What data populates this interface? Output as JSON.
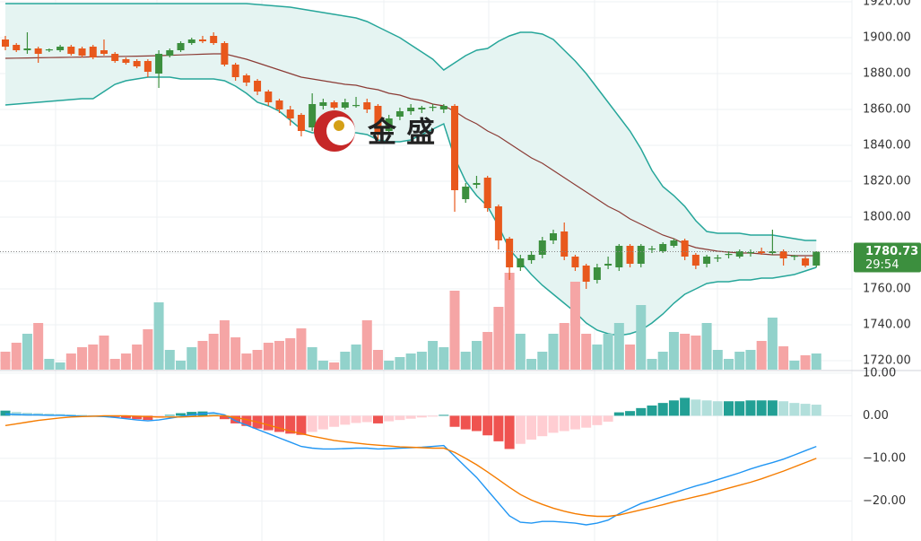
{
  "chart_data": [
    {
      "type": "candlestick",
      "watermark": "金 盛",
      "up_color": "#3c8f3e",
      "down_color": "#e8581c",
      "ylim": [
        1715,
        1921
      ],
      "yticks": [
        {
          "value": 1920,
          "label": "1920.00"
        },
        {
          "value": 1900,
          "label": "1900.00"
        },
        {
          "value": 1880,
          "label": "1880.00"
        },
        {
          "value": 1860,
          "label": "1860.00"
        },
        {
          "value": 1840,
          "label": "1840.00"
        },
        {
          "value": 1820,
          "label": "1820.00"
        },
        {
          "value": 1800,
          "label": "1800.00"
        },
        {
          "value": 1780,
          "label": "1780.00"
        },
        {
          "value": 1760,
          "label": "1760.00"
        },
        {
          "value": 1740,
          "label": "1740.00"
        },
        {
          "value": 1720,
          "label": "1720.00"
        }
      ],
      "grid": true,
      "last_price": 1780.73,
      "countdown": "29:54",
      "last_price_color": "#3c8f3e",
      "open": [
        1899,
        1896,
        1893,
        1894,
        1893,
        1893,
        1895,
        1894,
        1895,
        1893,
        1891,
        1888,
        1887,
        1887,
        1880,
        1890,
        1893,
        1897,
        1899,
        1901,
        1897,
        1885,
        1879,
        1876,
        1870,
        1865,
        1860,
        1857,
        1850,
        1862,
        1864,
        1861,
        1862,
        1864,
        1862,
        1848,
        1856,
        1859,
        1860,
        1861,
        1860,
        1862,
        1810,
        1818,
        1822,
        1806,
        1788,
        1772,
        1776,
        1779,
        1787,
        1792,
        1778,
        1773,
        1765,
        1773,
        1772,
        1784,
        1774,
        1782,
        1781,
        1784,
        1787,
        1779,
        1774,
        1777,
        1779,
        1778,
        1780,
        1781,
        1780,
        1781,
        1778,
        1777,
        1773
      ],
      "high": [
        1901,
        1897,
        1903,
        1895,
        1894,
        1896,
        1896,
        1895,
        1896,
        1899,
        1892,
        1889,
        1888,
        1888,
        1893,
        1894,
        1898,
        1900,
        1901,
        1903,
        1898,
        1886,
        1880,
        1877,
        1871,
        1866,
        1862,
        1858,
        1869,
        1866,
        1865,
        1866,
        1867,
        1866,
        1863,
        1857,
        1861,
        1863,
        1862,
        1863,
        1863,
        1863,
        1819,
        1823,
        1823,
        1807,
        1789,
        1779,
        1781,
        1789,
        1793,
        1797,
        1779,
        1774,
        1774,
        1778,
        1785,
        1785,
        1785,
        1784,
        1786,
        1788,
        1788,
        1780,
        1779,
        1779,
        1781,
        1782,
        1782,
        1783,
        1793,
        1782,
        1779,
        1778,
        1781
      ],
      "low": [
        1893,
        1892,
        1891,
        1886,
        1892,
        1892,
        1890,
        1889,
        1888,
        1890,
        1886,
        1885,
        1883,
        1878,
        1872,
        1889,
        1892,
        1896,
        1897,
        1896,
        1884,
        1876,
        1873,
        1868,
        1862,
        1858,
        1851,
        1845,
        1848,
        1860,
        1860,
        1860,
        1861,
        1858,
        1843,
        1846,
        1854,
        1857,
        1858,
        1859,
        1858,
        1803,
        1808,
        1816,
        1803,
        1782,
        1765,
        1770,
        1774,
        1777,
        1785,
        1776,
        1770,
        1760,
        1763,
        1771,
        1770,
        1772,
        1772,
        1780,
        1780,
        1783,
        1776,
        1771,
        1772,
        1775,
        1777,
        1777,
        1778,
        1779,
        1779,
        1773,
        1776,
        1772,
        1772
      ],
      "close": [
        1895,
        1893,
        1894,
        1891,
        1893.5,
        1895,
        1891,
        1890,
        1889,
        1891,
        1887,
        1886,
        1884,
        1881,
        1891,
        1893,
        1897,
        1899,
        1898,
        1897,
        1885,
        1878,
        1875,
        1870,
        1864,
        1860,
        1855,
        1848,
        1863,
        1864,
        1861,
        1864,
        1862.5,
        1860,
        1846,
        1855,
        1859,
        1861,
        1861,
        1861.5,
        1862,
        1815,
        1817,
        1819,
        1805,
        1787,
        1772,
        1777,
        1779,
        1787,
        1791,
        1778,
        1772,
        1764,
        1772,
        1774,
        1784,
        1774,
        1784,
        1782.5,
        1785,
        1787,
        1778,
        1773,
        1778,
        1777.5,
        1779.5,
        1781,
        1780.5,
        1780,
        1781,
        1777,
        1778.5,
        1773,
        1780.73
      ],
      "bollinger": {
        "color": "#26a69a",
        "fill": "#e5f4f2",
        "middle_color": "#8b3b35",
        "upper": [
          1919,
          1919,
          1919,
          1919,
          1919,
          1919,
          1919,
          1919,
          1919,
          1919,
          1919,
          1919,
          1919,
          1919,
          1919,
          1919,
          1919,
          1919,
          1919,
          1919,
          1919,
          1919,
          1919,
          1918.5,
          1918,
          1917.5,
          1917,
          1916,
          1915,
          1914,
          1913,
          1912,
          1911,
          1909,
          1906,
          1903,
          1900,
          1896,
          1892,
          1888,
          1882,
          1886,
          1890,
          1893,
          1894,
          1898,
          1901,
          1903,
          1903,
          1902,
          1899,
          1893,
          1887,
          1880,
          1872,
          1864,
          1856,
          1848,
          1838,
          1826,
          1817,
          1812,
          1806,
          1798,
          1792,
          1791,
          1791,
          1791,
          1790,
          1790,
          1790,
          1789,
          1788,
          1787,
          1787
        ],
        "middle": [
          1888.5,
          1888.6,
          1888.7,
          1888.8,
          1888.9,
          1889,
          1889.1,
          1889.2,
          1889.3,
          1889.4,
          1889.5,
          1889.6,
          1889.7,
          1889.8,
          1890,
          1890.2,
          1890.4,
          1890.6,
          1890.8,
          1891,
          1891,
          1889.5,
          1888,
          1886,
          1884,
          1882,
          1880,
          1878,
          1877,
          1876,
          1875,
          1874,
          1873.5,
          1872,
          1871,
          1869,
          1868,
          1866,
          1865,
          1863,
          1862,
          1859,
          1855,
          1852,
          1848,
          1845,
          1841,
          1837,
          1833,
          1830,
          1826,
          1822,
          1818,
          1814,
          1810,
          1806,
          1803,
          1799,
          1796,
          1793,
          1790,
          1788,
          1785,
          1783,
          1782,
          1781,
          1780.5,
          1780,
          1780,
          1779.5,
          1779,
          1779,
          1778.5,
          1778.5,
          1778.5
        ],
        "lower": [
          1862.5,
          1863,
          1863.5,
          1864,
          1864.5,
          1865,
          1865.5,
          1866,
          1866,
          1870,
          1874,
          1876,
          1877,
          1878,
          1878,
          1878,
          1877,
          1877,
          1877,
          1877,
          1876,
          1873,
          1869,
          1864,
          1862,
          1859,
          1854,
          1849,
          1847,
          1847,
          1847,
          1847,
          1847,
          1846,
          1843,
          1842,
          1842,
          1843,
          1846,
          1849,
          1852,
          1833,
          1820,
          1812,
          1806,
          1795,
          1782,
          1775,
          1768,
          1762,
          1757,
          1752,
          1747,
          1741,
          1737,
          1735,
          1734,
          1735,
          1737,
          1741,
          1746,
          1752,
          1757,
          1760,
          1763,
          1764,
          1764,
          1765,
          1765,
          1766,
          1766,
          1767,
          1768,
          1770,
          1772
        ]
      },
      "volume": {
        "up_color": "#92d2cb",
        "down_color": "#f5a5a5",
        "values": [
          20,
          30,
          40,
          52,
          12,
          8,
          18,
          25,
          28,
          38,
          12,
          18,
          28,
          45,
          75,
          22,
          10,
          25,
          32,
          40,
          55,
          36,
          18,
          22,
          30,
          32,
          35,
          46,
          25,
          10,
          8,
          20,
          28,
          55,
          22,
          10,
          14,
          18,
          20,
          32,
          25,
          88,
          20,
          32,
          42,
          70,
          108,
          40,
          12,
          20,
          40,
          52,
          98,
          40,
          28,
          40,
          52,
          28,
          72,
          12,
          20,
          42,
          40,
          38,
          52,
          22,
          12,
          20,
          22,
          32,
          58,
          26,
          10,
          16,
          18
        ]
      }
    },
    {
      "type": "macd",
      "ylim": [
        -29.4,
        10.4
      ],
      "yticks": [
        {
          "value": 10,
          "label": "10.00"
        },
        {
          "value": 0,
          "label": "0.00"
        },
        {
          "value": -10,
          "label": "−10.00"
        },
        {
          "value": -20,
          "label": "−20.00"
        }
      ],
      "grid": true,
      "histogram_colors": {
        "up_rising": "#22a095",
        "up_falling": "#b2dfdb",
        "down_falling": "#ef5350",
        "down_rising": "#ffcdd2"
      },
      "histogram": [
        1.2,
        0.9,
        0.7,
        0.6,
        0.5,
        0.4,
        0.3,
        0.2,
        0.1,
        0,
        -0.3,
        -0.6,
        -0.8,
        -1.0,
        -0.5,
        0.2,
        0.6,
        0.9,
        1.0,
        0.6,
        -0.8,
        -1.8,
        -2.4,
        -3.0,
        -3.4,
        -3.8,
        -4.2,
        -4.5,
        -3.8,
        -3.2,
        -2.6,
        -2.1,
        -1.7,
        -1.5,
        -1.8,
        -1.3,
        -1.0,
        -0.7,
        -0.4,
        -0.2,
        0.2,
        -2.6,
        -3.2,
        -3.6,
        -4.6,
        -6.0,
        -7.8,
        -6.6,
        -5.6,
        -4.8,
        -4.0,
        -3.6,
        -3.2,
        -2.8,
        -2.2,
        -1.4,
        0.8,
        1.1,
        1.8,
        2.4,
        3.0,
        3.6,
        4.2,
        3.8,
        3.6,
        3.4,
        3.4,
        3.4,
        3.6,
        3.6,
        3.6,
        3.4,
        3.0,
        2.8,
        2.6
      ],
      "macd": {
        "color": "#2196f3",
        "values": [
          0.4,
          0.3,
          0.2,
          0.2,
          0.1,
          0.1,
          0.0,
          -0.1,
          -0.1,
          -0.2,
          -0.4,
          -0.7,
          -1.0,
          -1.2,
          -1.0,
          -0.6,
          -0.2,
          0.2,
          0.5,
          0.7,
          0.2,
          -1.2,
          -2.2,
          -3.2,
          -4.2,
          -5.2,
          -6.2,
          -7.2,
          -7.6,
          -7.8,
          -7.8,
          -7.7,
          -7.6,
          -7.6,
          -7.8,
          -7.7,
          -7.6,
          -7.5,
          -7.4,
          -7.2,
          -7.0,
          -9.5,
          -12.0,
          -14.5,
          -17.5,
          -20.5,
          -23.5,
          -25.0,
          -25.2,
          -24.8,
          -24.8,
          -25.0,
          -25.2,
          -25.6,
          -25.2,
          -24.5,
          -23.0,
          -21.8,
          -20.6,
          -19.8,
          -19.0,
          -18.2,
          -17.3,
          -16.5,
          -15.8,
          -15.0,
          -14.2,
          -13.4,
          -12.5,
          -11.7,
          -11.0,
          -10.2,
          -9.2,
          -8.2,
          -7.2
        ]
      },
      "signal": {
        "color": "#f57c00",
        "values": [
          -2.3,
          -1.9,
          -1.5,
          -1.1,
          -0.8,
          -0.5,
          -0.3,
          -0.2,
          -0.1,
          0,
          0,
          0,
          -0.1,
          -0.2,
          -0.3,
          -0.3,
          -0.3,
          -0.2,
          -0.1,
          0,
          0,
          -0.4,
          -0.9,
          -1.5,
          -2.2,
          -2.9,
          -3.6,
          -4.2,
          -4.8,
          -5.3,
          -5.8,
          -6.1,
          -6.4,
          -6.7,
          -6.9,
          -7.1,
          -7.3,
          -7.4,
          -7.5,
          -7.6,
          -7.6,
          -8.6,
          -10.0,
          -11.5,
          -13.2,
          -15.0,
          -16.8,
          -18.5,
          -19.8,
          -20.8,
          -21.7,
          -22.4,
          -23.0,
          -23.4,
          -23.6,
          -23.6,
          -23.3,
          -22.7,
          -22.1,
          -21.5,
          -20.9,
          -20.2,
          -19.6,
          -19.0,
          -18.4,
          -17.7,
          -17.0,
          -16.3,
          -15.6,
          -14.8,
          -13.9,
          -13.0,
          -12.0,
          -11.0,
          -10.0
        ]
      }
    }
  ]
}
